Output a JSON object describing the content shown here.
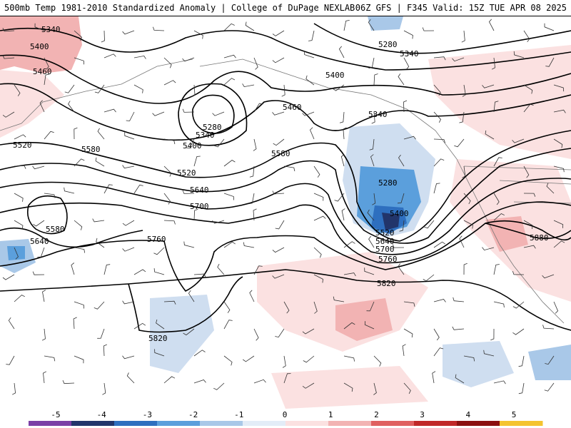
{
  "header": {
    "left_title": "500mb Temp 1981-2010 Standardized Anomaly | College of DuPage NEXLAB",
    "right_title": "06Z GFS | F345 Valid: 15Z TUE APR 08 2025"
  },
  "contours": {
    "color": "#000000",
    "labels": [
      "5340",
      "5400",
      "5460",
      "5520",
      "5580",
      "5280",
      "5340",
      "5400",
      "5460",
      "5280",
      "5340",
      "5400",
      "5520",
      "5640",
      "5700",
      "5580",
      "5640",
      "5760",
      "5340",
      "5280",
      "5400",
      "5520",
      "5580",
      "5640",
      "5700",
      "5760",
      "5820",
      "5880",
      "5820"
    ]
  },
  "legend": {
    "ticks": [
      "-5",
      "-4",
      "-3",
      "-2",
      "-1",
      "0",
      "1",
      "2",
      "3",
      "4",
      "5"
    ],
    "colors": [
      "#7b3fa6",
      "#22356b",
      "#2e6fbf",
      "#5b9fdc",
      "#a9c8e8",
      "#e3ecf7",
      "#fbe1e1",
      "#f2b3b3",
      "#e06060",
      "#c02828",
      "#8b1010",
      "#f4c430"
    ]
  }
}
